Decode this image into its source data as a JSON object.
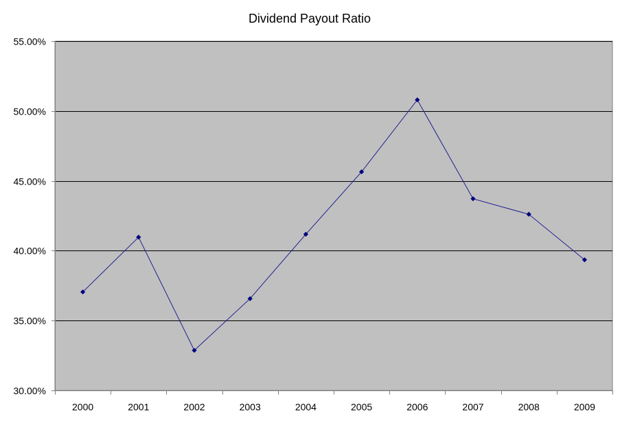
{
  "chart_data": {
    "type": "line",
    "title": "Dividend Payout Ratio",
    "xlabel": "",
    "ylabel": "",
    "categories": [
      "2000",
      "2001",
      "2002",
      "2003",
      "2004",
      "2005",
      "2006",
      "2007",
      "2008",
      "2009"
    ],
    "series": [
      {
        "values": [
          37.05,
          40.97,
          32.87,
          36.57,
          41.18,
          45.65,
          50.8,
          43.72,
          42.61,
          39.35
        ],
        "color": "#1f1f8f",
        "marker": "diamond",
        "marker_color": "#000080"
      }
    ],
    "ylim": [
      30,
      55
    ],
    "yticks": [
      30,
      35,
      40,
      45,
      50,
      55
    ],
    "ytick_labels": [
      "30.00%",
      "35.00%",
      "40.00%",
      "45.00%",
      "50.00%",
      "55.00%"
    ],
    "y_format": "percent",
    "grid": "horizontal",
    "legend": "none",
    "plot_background": "#c0c0c0",
    "gridline_color": "#000000"
  }
}
